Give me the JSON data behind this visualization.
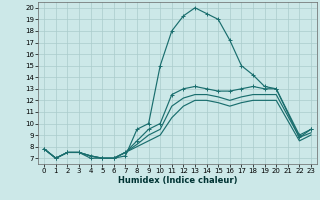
{
  "title": "",
  "xlabel": "Humidex (Indice chaleur)",
  "bg_color": "#cce8e8",
  "grid_color": "#aacccc",
  "line_color": "#1a6e6e",
  "xlim": [
    -0.5,
    23.5
  ],
  "ylim": [
    6.5,
    20.5
  ],
  "xticks": [
    0,
    1,
    2,
    3,
    4,
    5,
    6,
    7,
    8,
    9,
    10,
    11,
    12,
    13,
    14,
    15,
    16,
    17,
    18,
    19,
    20,
    21,
    22,
    23
  ],
  "yticks": [
    7,
    8,
    9,
    10,
    11,
    12,
    13,
    14,
    15,
    16,
    17,
    18,
    19,
    20
  ],
  "line1_x": [
    0,
    1,
    2,
    3,
    4,
    5,
    6,
    7,
    8,
    9,
    10,
    11,
    12,
    13,
    14,
    15,
    16,
    17,
    18,
    19,
    20,
    22,
    23
  ],
  "line1_y": [
    7.8,
    7.0,
    7.5,
    7.5,
    7.0,
    7.0,
    7.0,
    7.2,
    9.5,
    10.0,
    15.0,
    18.0,
    19.3,
    20.0,
    19.5,
    19.0,
    17.2,
    15.0,
    14.2,
    13.2,
    13.0,
    8.8,
    9.5
  ],
  "line2_x": [
    0,
    1,
    2,
    3,
    4,
    5,
    6,
    7,
    8,
    9,
    10,
    11,
    12,
    13,
    14,
    15,
    16,
    17,
    18,
    19,
    20,
    22,
    23
  ],
  "line2_y": [
    7.8,
    7.0,
    7.5,
    7.5,
    7.2,
    7.0,
    7.0,
    7.5,
    8.5,
    9.5,
    10.0,
    12.5,
    13.0,
    13.2,
    13.0,
    12.8,
    12.8,
    13.0,
    13.2,
    13.0,
    13.0,
    9.0,
    9.5
  ],
  "line3_x": [
    0,
    1,
    2,
    3,
    4,
    5,
    6,
    7,
    8,
    9,
    10,
    11,
    12,
    13,
    14,
    15,
    16,
    17,
    18,
    19,
    20,
    22,
    23
  ],
  "line3_y": [
    7.8,
    7.0,
    7.5,
    7.5,
    7.2,
    7.0,
    7.0,
    7.5,
    8.2,
    9.0,
    9.5,
    11.5,
    12.2,
    12.5,
    12.5,
    12.3,
    12.0,
    12.3,
    12.5,
    12.5,
    12.5,
    8.8,
    9.2
  ],
  "line4_x": [
    0,
    1,
    2,
    3,
    4,
    5,
    6,
    7,
    8,
    9,
    10,
    11,
    12,
    13,
    14,
    15,
    16,
    17,
    18,
    19,
    20,
    22,
    23
  ],
  "line4_y": [
    7.8,
    7.0,
    7.5,
    7.5,
    7.2,
    7.0,
    7.0,
    7.5,
    8.0,
    8.5,
    9.0,
    10.5,
    11.5,
    12.0,
    12.0,
    11.8,
    11.5,
    11.8,
    12.0,
    12.0,
    12.0,
    8.5,
    9.0
  ]
}
